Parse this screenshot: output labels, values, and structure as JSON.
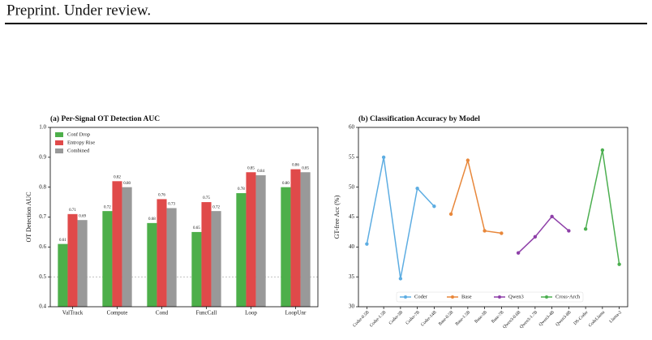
{
  "header": {
    "text": "Preprint. Under review."
  },
  "chart_data": [
    {
      "type": "bar",
      "title": "(a) Per-Signal OT Detection AUC",
      "ylabel": "OT Detection AUC",
      "categories": [
        "ValTrack",
        "Compute",
        "Cond",
        "FuncCall",
        "Loop",
        "LoopUnr"
      ],
      "series": [
        {
          "name": "Conf Drop",
          "color": "#4daf4a",
          "values": [
            0.61,
            0.72,
            0.68,
            0.65,
            0.78,
            0.8
          ],
          "value_labels": [
            "0.61",
            "0.72",
            "0.68",
            "0.65",
            "0.78",
            "0.80"
          ]
        },
        {
          "name": "Entropy Rise",
          "color": "#e04a4a",
          "values": [
            0.71,
            0.82,
            0.76,
            0.75,
            0.85,
            0.86
          ],
          "value_labels": [
            "0.71",
            "0.82",
            "0.76",
            "0.75",
            "0.85",
            "0.86"
          ]
        },
        {
          "name": "Combined",
          "color": "#999999",
          "values": [
            0.69,
            0.8,
            0.73,
            0.72,
            0.84,
            0.85
          ],
          "value_labels": [
            "0.69",
            "0.80",
            "0.73",
            "0.72",
            "0.84",
            "0.85"
          ]
        }
      ],
      "ylim": [
        0.4,
        1.0
      ],
      "yticks": [
        0.4,
        0.5,
        0.6,
        0.7,
        0.8,
        0.9,
        {
          "value": 1.0,
          "label": "1.0"
        }
      ],
      "hline": 0.5,
      "grid": false,
      "legend": "upper left"
    },
    {
      "type": "line",
      "title": "(b) Classification Accuracy by Model",
      "ylabel": "GT-free Acc (%)",
      "categories": [
        "Coder-0.5B",
        "Coder-1.5B",
        "Coder-3B",
        "Coder-7B",
        "Coder-14B",
        "Base-0.5B",
        "Base-1.5B",
        "Base-3B",
        "Base-7B",
        "Qwen3-0.6B",
        "Qwen3-1.7B",
        "Qwen3-4B",
        "Qwen3-8B",
        "DS-Coder",
        "CodeLlama",
        "Llama-2"
      ],
      "series": [
        {
          "name": "Coder",
          "color": "#5dade2",
          "values": [
            40.5,
            55.0,
            34.7,
            49.8,
            46.8,
            null,
            null,
            null,
            null,
            null,
            null,
            null,
            null,
            null,
            null,
            null
          ]
        },
        {
          "name": "Base",
          "color": "#e8873a",
          "values": [
            null,
            null,
            null,
            null,
            null,
            45.5,
            54.5,
            42.7,
            42.3,
            null,
            null,
            null,
            null,
            null,
            null,
            null
          ]
        },
        {
          "name": "Qwen3",
          "color": "#8e3fa8",
          "values": [
            null,
            null,
            null,
            null,
            null,
            null,
            null,
            null,
            null,
            39.0,
            41.7,
            45.1,
            42.7,
            null,
            null,
            null
          ]
        },
        {
          "name": "Cross-Arch",
          "color": "#4caf50",
          "values": [
            null,
            null,
            null,
            null,
            null,
            null,
            null,
            null,
            null,
            null,
            null,
            null,
            null,
            43.0,
            56.2,
            37.1
          ]
        }
      ],
      "ylim": [
        30,
        60
      ],
      "yticks": [
        30,
        35,
        40,
        45,
        50,
        55,
        60
      ],
      "grid": false,
      "legend": "lower center"
    }
  ]
}
